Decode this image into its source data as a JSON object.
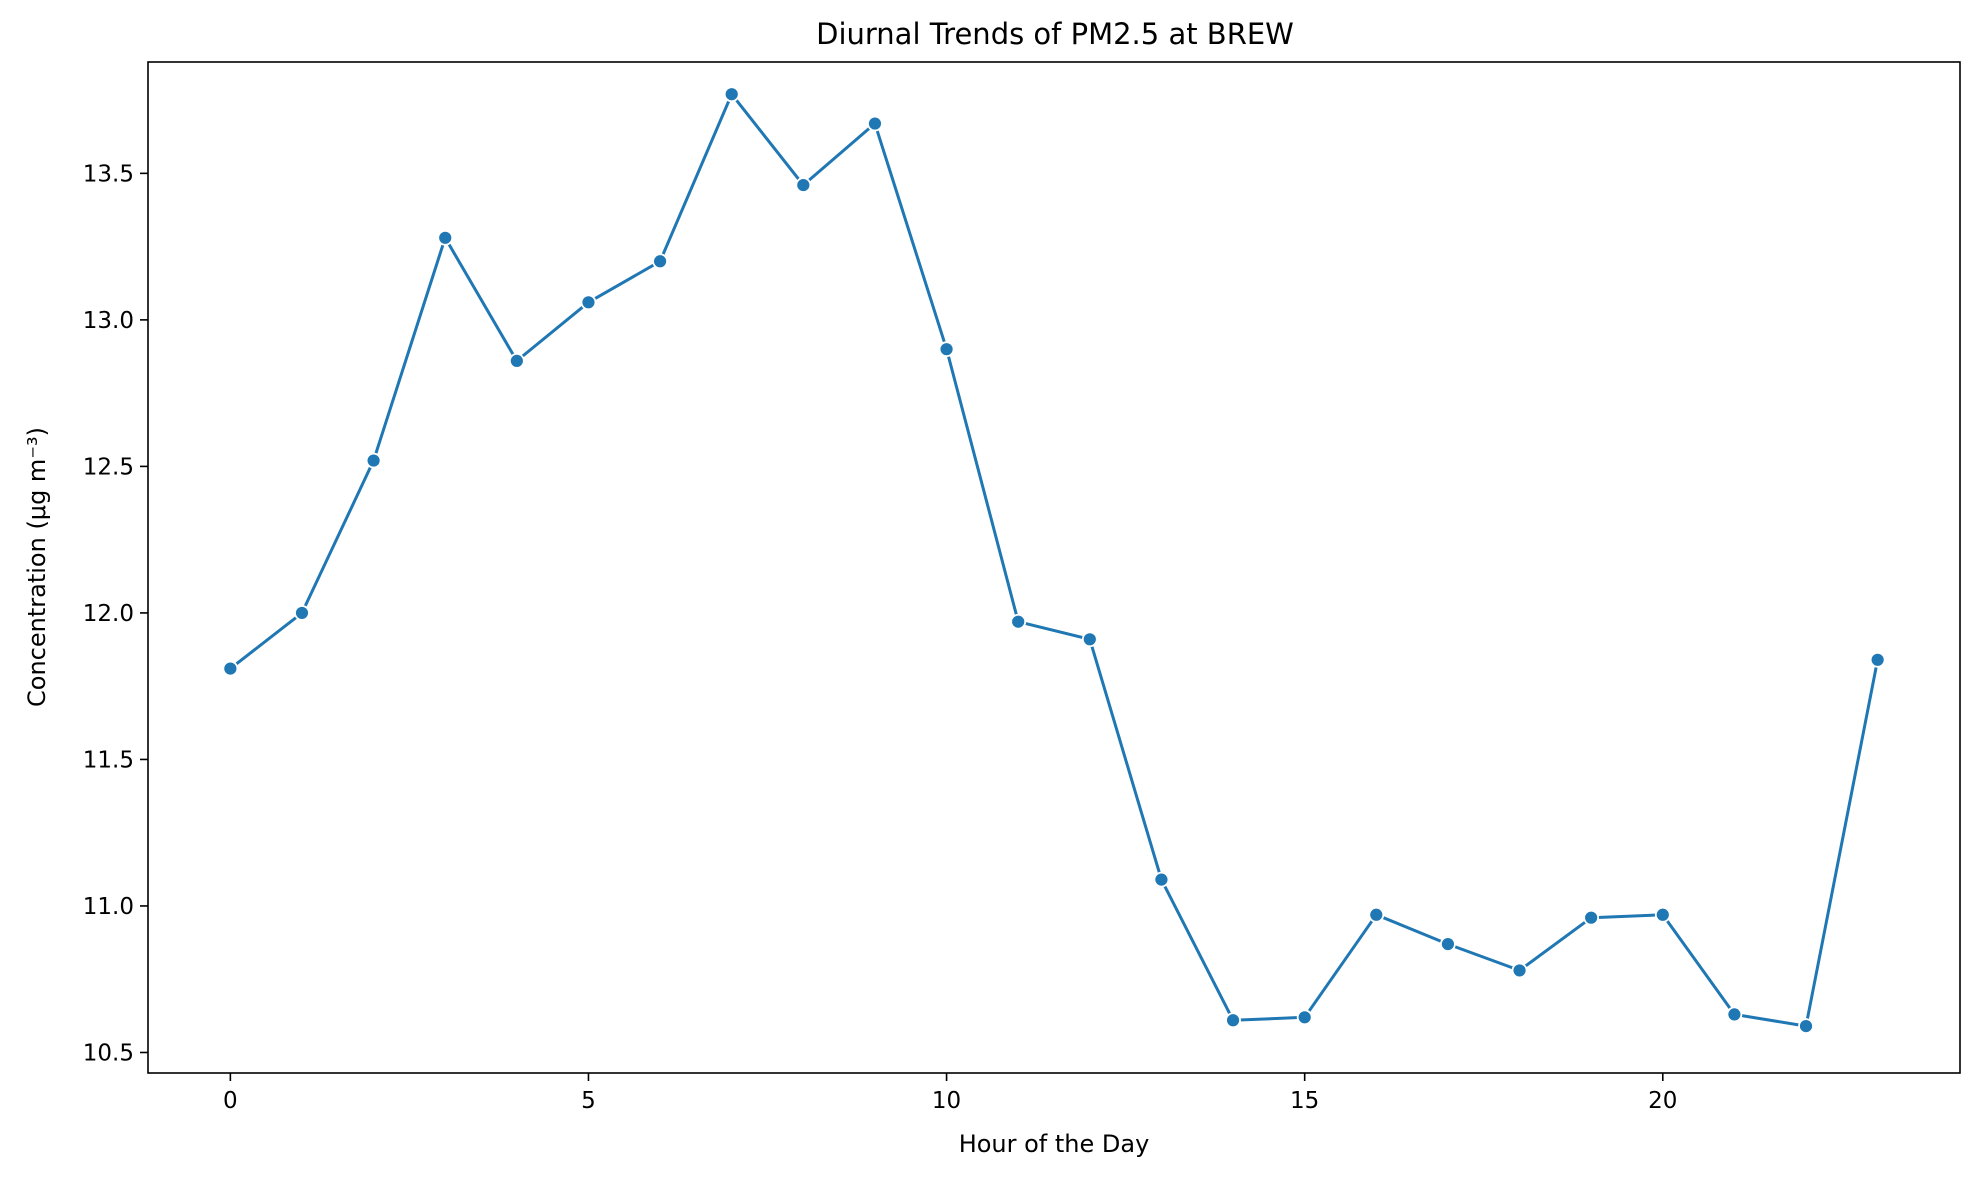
{
  "chart_data": {
    "type": "line",
    "title": "Diurnal Trends of PM2.5 at BREW",
    "xlabel": "Hour of the Day",
    "ylabel": "Concentration (μg m⁻³)",
    "xlim": [
      -1.15,
      24.15
    ],
    "ylim": [
      10.43,
      13.88
    ],
    "xticks": [
      0,
      5,
      10,
      15,
      20
    ],
    "xtick_labels": [
      "0",
      "5",
      "10",
      "15",
      "20"
    ],
    "yticks": [
      10.5,
      11.0,
      11.5,
      12.0,
      12.5,
      13.0,
      13.5
    ],
    "ytick_labels": [
      "10.5",
      "11.0",
      "11.5",
      "12.0",
      "12.5",
      "13.0",
      "13.5"
    ],
    "grid": false,
    "legend": "none",
    "line_color": "#1f77b4",
    "series": [
      {
        "x": [
          0,
          1,
          2,
          3,
          4,
          5,
          6,
          7,
          8,
          9,
          10,
          11,
          12,
          13,
          14,
          15,
          16,
          17,
          18,
          19,
          20,
          21,
          22,
          23
        ],
        "values": [
          11.81,
          12.0,
          12.52,
          13.28,
          12.86,
          13.06,
          13.2,
          13.77,
          13.46,
          13.67,
          12.9,
          11.97,
          11.91,
          11.09,
          10.61,
          10.62,
          10.97,
          10.87,
          10.78,
          10.96,
          10.97,
          10.63,
          10.59,
          11.84
        ]
      }
    ]
  }
}
